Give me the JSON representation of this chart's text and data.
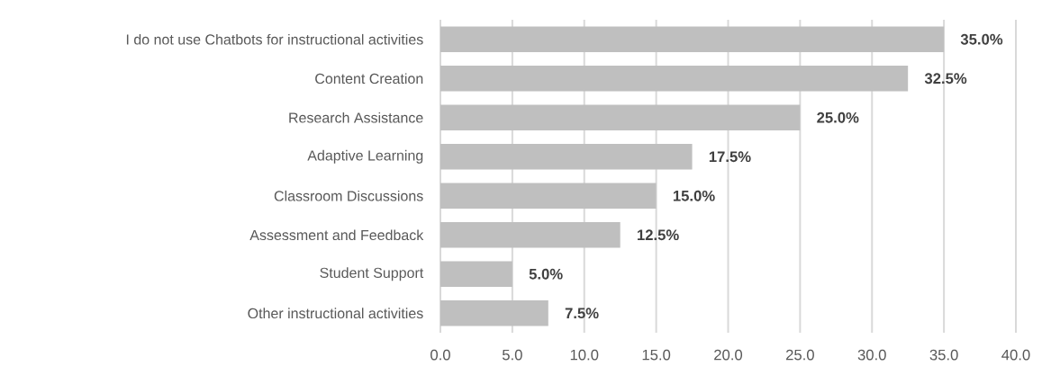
{
  "chart_data": {
    "type": "bar",
    "orientation": "horizontal",
    "categories": [
      "I do not use Chatbots for instructional activities",
      "Content Creation",
      "Research Assistance",
      "Adaptive Learning",
      "Classroom Discussions",
      "Assessment and Feedback",
      "Student Support",
      "Other instructional activities"
    ],
    "values": [
      35.0,
      32.5,
      25.0,
      17.5,
      15.0,
      12.5,
      5.0,
      7.5
    ],
    "value_labels": [
      "35.0%",
      "32.5%",
      "25.0%",
      "17.5%",
      "15.0%",
      "12.5%",
      "5.0%",
      "7.5%"
    ],
    "color": "#bfbfbf",
    "xlim": [
      0,
      40
    ],
    "xticks": [
      {
        "value": 0,
        "label": "0.0"
      },
      {
        "value": 5,
        "label": "5.0"
      },
      {
        "value": 10,
        "label": "10.0"
      },
      {
        "value": 15,
        "label": "15.0"
      },
      {
        "value": 20,
        "label": "20.0"
      },
      {
        "value": 25,
        "label": "25.0"
      },
      {
        "value": 30,
        "label": "30.0"
      },
      {
        "value": 35,
        "label": "35.0"
      },
      {
        "value": 40,
        "label": "40.0"
      }
    ],
    "grid": "x"
  }
}
